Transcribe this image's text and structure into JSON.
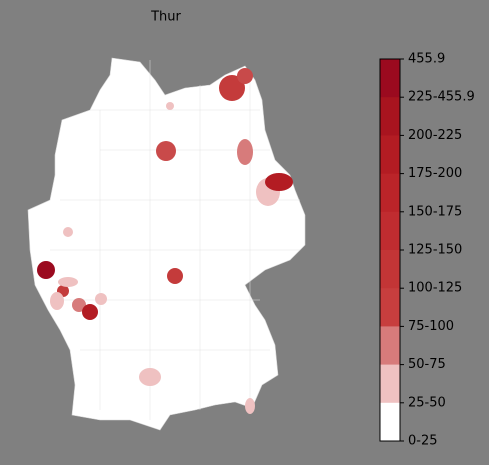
{
  "title": "Thur",
  "legend": {
    "labels": [
      "455.9",
      "225-455.9",
      "200-225",
      "175-200",
      "150-175",
      "125-150",
      "100-125",
      "75-100",
      "50-75",
      "25-50",
      "0-25"
    ],
    "colors": [
      "#9b0a1f",
      "#a8141f",
      "#b31c23",
      "#bb2429",
      "#c02c30",
      "#c33536",
      "#c73e3e",
      "#d77b7b",
      "#efc1c1",
      "#ffffff"
    ]
  }
}
